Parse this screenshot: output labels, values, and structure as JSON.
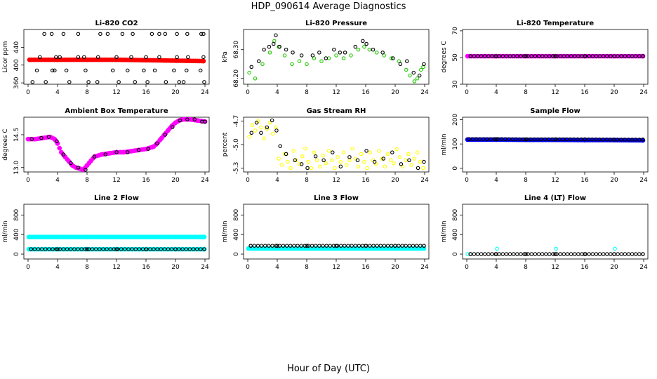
{
  "figure": {
    "title": "HDP_090614  Average Diagnostics",
    "xlabel": "Hour of Day (UTC)"
  },
  "colors": {
    "red": "#ff0000",
    "green": "#22cc00",
    "magenta": "#ff00ff",
    "yellow": "#ffff00",
    "blue": "#0000ff",
    "cyan": "#00ffff",
    "black": "#000000"
  },
  "chart_data": [
    {
      "type": "scatter",
      "title": "Li-820 CO2",
      "ylabel": "Licor ppm",
      "xlim": [
        0,
        24
      ],
      "ylim": [
        357,
        480
      ],
      "xticks": [
        0,
        4,
        8,
        12,
        16,
        20,
        24
      ],
      "yticks": [
        360,
        400,
        440
      ],
      "ytick_labels": [
        "360",
        "400",
        "440"
      ],
      "series": [
        {
          "name": "co2_line",
          "color": "red",
          "marker": "filled",
          "x": [
            0.2,
            4,
            8,
            12,
            16,
            20,
            23.8
          ],
          "y": [
            412,
            412,
            412,
            412,
            411,
            410,
            409
          ]
        },
        {
          "name": "co2_hi",
          "color": "black",
          "marker": "open",
          "x": [
            2.2,
            3.2,
            4.8,
            6.8,
            9.8,
            10.8,
            12.8,
            14.2,
            16.8,
            17.8,
            18.6,
            20.2,
            21.6,
            23.5,
            23.8
          ],
          "y": [
            470,
            470,
            470,
            470,
            470,
            470,
            470,
            470,
            470,
            470,
            470,
            470,
            470,
            470,
            470
          ]
        },
        {
          "name": "co2_mid_hi",
          "color": "black",
          "marker": "open",
          "x": [
            1.6,
            3.8,
            4.3,
            6.8,
            7.6,
            9.5,
            12.0,
            14.0,
            16.0,
            17.8,
            20.2,
            21.7,
            23.8
          ],
          "y": [
            418,
            418,
            418,
            418,
            418,
            418,
            418,
            418,
            418,
            418,
            418,
            418,
            418
          ]
        },
        {
          "name": "co2_mid_lo",
          "color": "black",
          "marker": "open",
          "x": [
            1.2,
            3.3,
            3.6,
            5.2,
            7.8,
            11.5,
            13.5,
            15.7,
            17.2,
            19.8,
            21.5,
            23.4
          ],
          "y": [
            388,
            388,
            388,
            388,
            388,
            388,
            388,
            388,
            388,
            388,
            388,
            388
          ]
        },
        {
          "name": "co2_lo",
          "color": "black",
          "marker": "open",
          "x": [
            0.6,
            2.4,
            5.6,
            8.2,
            9.4,
            12.3,
            14.5,
            16.2,
            18.7,
            20.5,
            21.1,
            23.9
          ],
          "y": [
            362,
            362,
            362,
            362,
            362,
            362,
            362,
            362,
            362,
            362,
            362,
            362
          ]
        }
      ]
    },
    {
      "type": "scatter",
      "title": "Li-820 Pressure",
      "ylabel": "kPa",
      "xlim": [
        0,
        24
      ],
      "ylim": [
        68.18,
        68.37
      ],
      "xticks": [
        0,
        4,
        8,
        12,
        16,
        20,
        24
      ],
      "yticks": [
        68.2,
        68.3
      ],
      "ytick_labels": [
        "68.20",
        "68.30"
      ],
      "series": [
        {
          "name": "pressure_green",
          "color": "green",
          "marker": "open",
          "x": [
            0.2,
            1.0,
            2.0,
            3.0,
            3.6,
            4.2,
            5.0,
            6.0,
            7.0,
            8.0,
            9.0,
            10.0,
            11.0,
            12.0,
            13.0,
            14.0,
            15.0,
            15.8,
            16.5,
            17.5,
            18.5,
            19.5,
            20.5,
            21.5,
            22.0,
            22.6,
            23.0,
            23.5,
            23.8
          ],
          "y": [
            68.22,
            68.2,
            68.25,
            68.29,
            68.33,
            68.31,
            68.28,
            68.25,
            68.26,
            68.25,
            68.27,
            68.26,
            68.27,
            68.28,
            68.27,
            68.28,
            68.3,
            68.31,
            68.3,
            68.29,
            68.28,
            68.27,
            68.26,
            68.23,
            68.21,
            68.19,
            68.2,
            68.23,
            68.24
          ]
        },
        {
          "name": "pressure_black",
          "color": "black",
          "marker": "open",
          "x": [
            0.5,
            1.5,
            2.2,
            2.9,
            3.5,
            3.8,
            4.3,
            5.2,
            6.1,
            7.3,
            8.8,
            9.7,
            10.6,
            11.7,
            12.5,
            13.2,
            14.6,
            15.6,
            16.1,
            17.0,
            18.3,
            19.7,
            20.7,
            21.6,
            22.5,
            23.3,
            23.9
          ],
          "y": [
            68.24,
            68.26,
            68.3,
            68.31,
            68.32,
            68.35,
            68.31,
            68.3,
            68.29,
            68.28,
            68.28,
            68.29,
            68.27,
            68.3,
            68.29,
            68.29,
            68.31,
            68.33,
            68.32,
            68.3,
            68.29,
            68.27,
            68.25,
            68.26,
            68.22,
            68.21,
            68.25
          ]
        }
      ]
    },
    {
      "type": "scatter",
      "title": "Li-820 Temperature",
      "ylabel": "degrees C",
      "xlim": [
        0,
        24
      ],
      "ylim": [
        30,
        71
      ],
      "xticks": [
        0,
        4,
        8,
        12,
        16,
        20,
        24
      ],
      "yticks": [
        30,
        50,
        70
      ],
      "ytick_labels": [
        "30",
        "50",
        "70"
      ],
      "series": [
        {
          "name": "licor_temp",
          "color": "magenta",
          "marker": "filled",
          "x": [
            0.1,
            4,
            8,
            12,
            16,
            20,
            23.9
          ],
          "y": [
            51,
            51,
            51,
            51,
            51,
            51,
            51
          ]
        },
        {
          "name": "licor_temp_black",
          "color": "black",
          "marker": "open",
          "x": [
            0.5,
            4,
            8,
            12,
            16,
            20,
            23.9
          ],
          "y": [
            51,
            51,
            51,
            51,
            51,
            51,
            51
          ]
        }
      ]
    },
    {
      "type": "scatter",
      "title": "Ambient Box Temperature",
      "ylabel": "degrees C",
      "xlim": [
        0,
        24
      ],
      "ylim": [
        12.8,
        15.3
      ],
      "xticks": [
        0,
        4,
        8,
        12,
        16,
        20,
        24
      ],
      "yticks": [
        13.0,
        14.5
      ],
      "ytick_labels": [
        "13.0",
        "14.5"
      ],
      "series": [
        {
          "name": "box_temp",
          "color": "magenta",
          "marker": "filled",
          "x": [
            0.0,
            1.0,
            2.0,
            3.0,
            3.6,
            4.0,
            4.5,
            5.0,
            5.5,
            6.0,
            6.5,
            7.0,
            7.5,
            8.0,
            8.5,
            9.0,
            10.0,
            11.0,
            12.0,
            13.0,
            14.0,
            15.0,
            16.0,
            17.0,
            17.5,
            18.0,
            18.5,
            19.0,
            19.5,
            20.0,
            20.5,
            21.0,
            22.0,
            23.0,
            24.0
          ],
          "y": [
            14.3,
            14.3,
            14.35,
            14.4,
            14.3,
            14.1,
            13.7,
            13.5,
            13.3,
            13.1,
            13.0,
            12.95,
            12.9,
            13.1,
            13.3,
            13.5,
            13.6,
            13.65,
            13.7,
            13.7,
            13.75,
            13.8,
            13.85,
            13.95,
            14.1,
            14.3,
            14.5,
            14.7,
            14.9,
            15.05,
            15.15,
            15.2,
            15.2,
            15.15,
            15.1
          ]
        },
        {
          "name": "box_temp_black",
          "color": "black",
          "marker": "open",
          "x": [
            0.5,
            1.8,
            2.8,
            3.9,
            4.8,
            5.8,
            6.8,
            7.8,
            9.0,
            10.5,
            12.0,
            13.5,
            15.0,
            16.3,
            17.5,
            18.6,
            19.6,
            20.6,
            21.6,
            22.6,
            23.6,
            24.0
          ],
          "y": [
            14.3,
            14.35,
            14.4,
            14.2,
            13.6,
            13.2,
            13.0,
            12.9,
            13.5,
            13.6,
            13.7,
            13.7,
            13.8,
            13.85,
            14.1,
            14.5,
            14.85,
            15.15,
            15.2,
            15.2,
            15.1,
            15.1
          ]
        }
      ]
    },
    {
      "type": "scatter",
      "title": "Gas Stream RH",
      "ylabel": "percent",
      "xlim": [
        0,
        24
      ],
      "ylim": [
        -5.35,
        -4.65
      ],
      "xticks": [
        0,
        4,
        8,
        12,
        16,
        20,
        24
      ],
      "yticks": [
        -4.7,
        -5.0,
        -5.3
      ],
      "ytick_labels": [
        "-4.7",
        "-5.0",
        "-5.3"
      ],
      "series": [
        {
          "name": "rh_yellow",
          "color": "yellow",
          "marker": "open",
          "x": [
            0.2,
            0.6,
            1.0,
            1.4,
            1.8,
            2.2,
            2.6,
            3.0,
            3.4,
            3.8,
            4.2,
            4.6,
            5.0,
            5.4,
            5.8,
            6.2,
            6.6,
            7.0,
            7.4,
            7.8,
            8.2,
            8.6,
            9.0,
            9.4,
            9.8,
            10.2,
            10.6,
            11.0,
            11.4,
            11.8,
            12.2,
            12.6,
            13.0,
            13.4,
            13.8,
            14.2,
            14.6,
            15.0,
            15.4,
            15.8,
            16.2,
            16.6,
            17.0,
            17.4,
            17.8,
            18.2,
            18.6,
            19.0,
            19.4,
            19.8,
            20.2,
            20.6,
            21.0,
            21.4,
            21.8,
            22.2,
            22.6,
            23.0,
            23.4,
            23.8
          ],
          "y": [
            -4.9,
            -4.75,
            -4.82,
            -4.7,
            -4.78,
            -4.92,
            -4.8,
            -4.72,
            -4.86,
            -4.78,
            -5.18,
            -5.26,
            -5.12,
            -5.22,
            -5.3,
            -5.08,
            -5.2,
            -5.25,
            -5.15,
            -5.05,
            -5.22,
            -5.3,
            -5.1,
            -5.2,
            -5.28,
            -5.14,
            -5.24,
            -5.08,
            -5.2,
            -5.3,
            -5.16,
            -5.22,
            -5.1,
            -5.26,
            -5.2,
            -5.05,
            -5.18,
            -5.28,
            -5.12,
            -5.22,
            -5.3,
            -5.1,
            -5.2,
            -5.25,
            -5.08,
            -5.18,
            -5.28,
            -5.12,
            -5.2,
            -5.24,
            -5.06,
            -5.16,
            -5.28,
            -5.2,
            -5.12,
            -5.26,
            -5.18,
            -5.1,
            -5.22,
            -5.3
          ]
        },
        {
          "name": "rh_black",
          "color": "black",
          "marker": "open",
          "x": [
            0.5,
            1.2,
            1.8,
            2.6,
            3.3,
            3.9,
            4.4,
            5.2,
            6.4,
            7.3,
            8.1,
            9.2,
            10.3,
            11.5,
            12.6,
            13.8,
            14.9,
            16.1,
            17.2,
            18.4,
            19.6,
            20.8,
            21.9,
            23.1,
            23.9
          ],
          "y": [
            -4.85,
            -4.72,
            -4.85,
            -4.78,
            -4.69,
            -4.82,
            -5.02,
            -5.12,
            -5.2,
            -5.25,
            -5.3,
            -5.15,
            -5.2,
            -5.1,
            -5.28,
            -5.16,
            -5.2,
            -5.08,
            -5.22,
            -5.18,
            -5.1,
            -5.25,
            -5.2,
            -5.3,
            -5.22
          ]
        }
      ]
    },
    {
      "type": "scatter",
      "title": "Sample Flow",
      "ylabel": "ml/min",
      "xlim": [
        0,
        24
      ],
      "ylim": [
        -15,
        210
      ],
      "xticks": [
        0,
        4,
        8,
        12,
        16,
        20,
        24
      ],
      "yticks": [
        0,
        100,
        200
      ],
      "ytick_labels": [
        "0",
        "100",
        "200"
      ],
      "series": [
        {
          "name": "sample_flow",
          "color": "blue",
          "marker": "filled",
          "x": [
            0.1,
            4,
            8,
            12,
            16,
            20,
            23.9
          ],
          "y": [
            118,
            118,
            117,
            117,
            116,
            116,
            115
          ]
        },
        {
          "name": "sample_flow_black",
          "color": "black",
          "marker": "open",
          "x": [
            0.3,
            4,
            8,
            12,
            16,
            20,
            23.9
          ],
          "y": [
            120,
            120,
            119,
            119,
            119,
            118,
            118
          ]
        }
      ]
    },
    {
      "type": "scatter",
      "title": "Line 2 Flow",
      "ylabel": "ml/min",
      "xlim": [
        0,
        24
      ],
      "ylim": [
        -100,
        1020
      ],
      "xticks": [
        0,
        4,
        8,
        12,
        16,
        20,
        24
      ],
      "yticks": [
        0,
        400,
        800
      ],
      "ytick_labels": [
        "0",
        "400",
        "800"
      ],
      "series": [
        {
          "name": "line2_cyan_high",
          "color": "cyan",
          "marker": "filled",
          "x": [
            0.1,
            4,
            8,
            12,
            16,
            20,
            23.9
          ],
          "y": [
            350,
            350,
            350,
            350,
            350,
            350,
            350
          ]
        },
        {
          "name": "line2_cyan_low",
          "color": "cyan",
          "marker": "filled",
          "x": [
            0.1,
            4,
            8,
            12,
            16,
            20,
            23.9
          ],
          "y": [
            100,
            100,
            100,
            100,
            100,
            100,
            100
          ]
        },
        {
          "name": "line2_black",
          "color": "black",
          "marker": "open",
          "x": [
            0.4,
            4,
            8,
            12,
            16,
            20,
            23.9
          ],
          "y": [
            100,
            100,
            100,
            100,
            100,
            100,
            100
          ]
        }
      ]
    },
    {
      "type": "scatter",
      "title": "Line 3 Flow",
      "ylabel": "ml/min",
      "xlim": [
        0,
        24
      ],
      "ylim": [
        -100,
        1020
      ],
      "xticks": [
        0,
        4,
        8,
        12,
        16,
        20,
        24
      ],
      "yticks": [
        0,
        400,
        800
      ],
      "ytick_labels": [
        "0",
        "400",
        "800"
      ],
      "series": [
        {
          "name": "line3_cyan",
          "color": "cyan",
          "marker": "filled",
          "x": [
            0.1,
            4,
            8,
            12,
            16,
            20,
            23.9
          ],
          "y": [
            115,
            115,
            115,
            115,
            115,
            115,
            115
          ]
        },
        {
          "name": "line3_black",
          "color": "black",
          "marker": "open",
          "x": [
            0.4,
            4,
            8,
            12,
            16,
            20,
            23.9
          ],
          "y": [
            170,
            170,
            170,
            170,
            170,
            170,
            170
          ]
        }
      ]
    },
    {
      "type": "scatter",
      "title": "Line 4 (LT) Flow",
      "ylabel": "ml/min",
      "xlim": [
        0,
        24
      ],
      "ylim": [
        -100,
        1020
      ],
      "xticks": [
        0,
        4,
        8,
        12,
        16,
        20,
        24
      ],
      "yticks": [
        0,
        400,
        800
      ],
      "ytick_labels": [
        "0",
        "400",
        "800"
      ],
      "series": [
        {
          "name": "line4_cyan_spikes",
          "color": "cyan",
          "marker": "open",
          "x": [
            0.1,
            4.1,
            12.1,
            20.1
          ],
          "y": [
            0,
            110,
            110,
            110
          ]
        },
        {
          "name": "line4_black",
          "color": "black",
          "marker": "open",
          "x": [
            0.5,
            4,
            8,
            12,
            16,
            20,
            23.9
          ],
          "y": [
            0,
            0,
            0,
            0,
            0,
            0,
            0
          ]
        }
      ]
    }
  ]
}
